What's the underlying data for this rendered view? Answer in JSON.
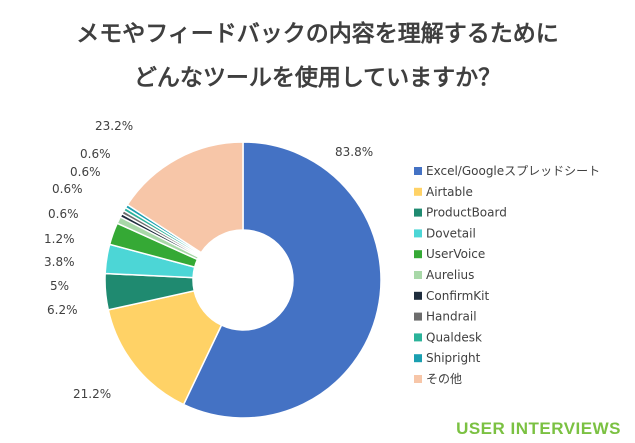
{
  "title_line1": "メモやフィードバックの内容を理解するために",
  "title_line2": "どんなツールを使用していますか？",
  "brand": "USER INTERVIEWS",
  "brand_color": "#7bc142",
  "chart_data": {
    "type": "pie",
    "variant": "donut",
    "legend_position": "right",
    "slices": [
      {
        "name": "Excel/Googleスプレッドシート",
        "value": 83.8,
        "label": "83.8%",
        "color": "#4472c4"
      },
      {
        "name": "Airtable",
        "value": 21.2,
        "label": "21.2%",
        "color": "#ffd266"
      },
      {
        "name": "ProductBoard",
        "value": 6.2,
        "label": "6.2%",
        "color": "#1f8a70"
      },
      {
        "name": "Dovetail",
        "value": 5,
        "label": "5%",
        "color": "#4cd6d6"
      },
      {
        "name": "UserVoice",
        "value": 3.8,
        "label": "3.8%",
        "color": "#35a935"
      },
      {
        "name": "Aurelius",
        "value": 1.2,
        "label": "1.2%",
        "color": "#a8d8a8"
      },
      {
        "name": "ConfirmKit",
        "value": 0.6,
        "label": "0.6%",
        "color": "#1f2d3d"
      },
      {
        "name": "Handrail",
        "value": 0.6,
        "label": "0.6%",
        "color": "#6d6d6d"
      },
      {
        "name": "Qualdesk",
        "value": 0.6,
        "label": "0.6%",
        "color": "#2bb39a"
      },
      {
        "name": "Shipright",
        "value": 0.6,
        "label": "0.6%",
        "color": "#1a9fb0"
      },
      {
        "name": "その他",
        "value": 23.2,
        "label": "23.2%",
        "color": "#f7c6a8"
      }
    ]
  }
}
